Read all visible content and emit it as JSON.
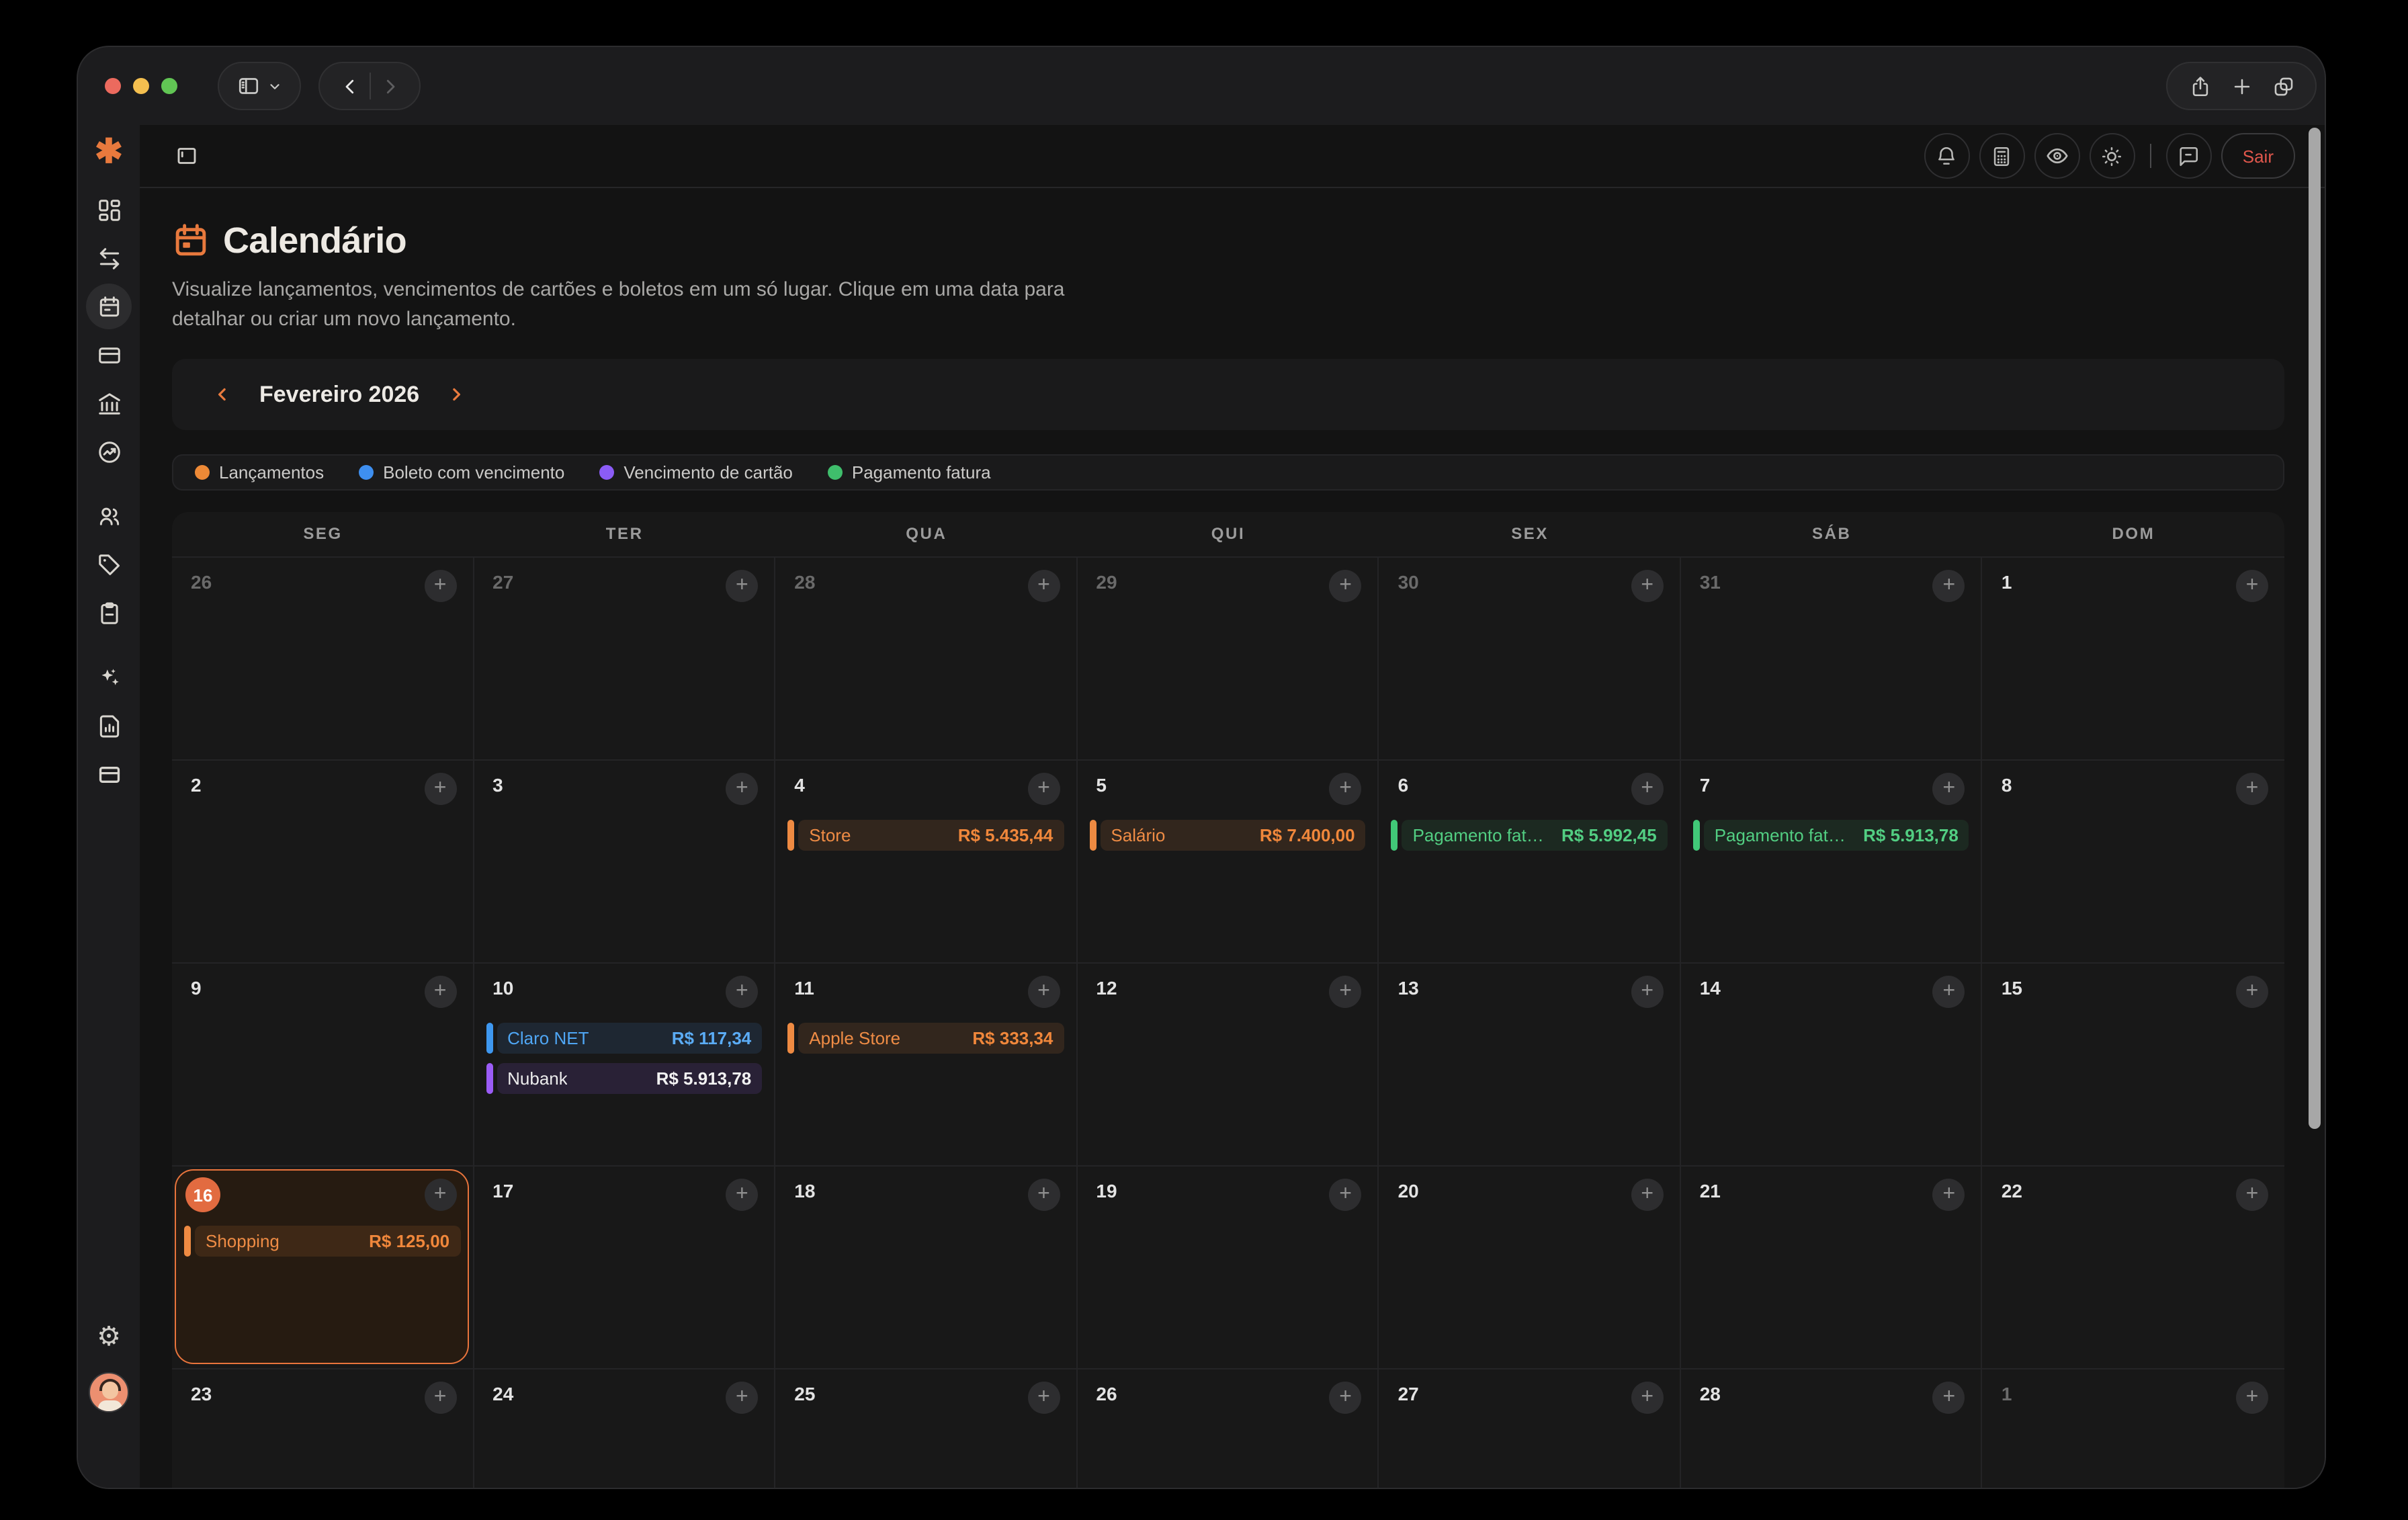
{
  "colors": {
    "accent_orange": "#E8793D",
    "logout_red": "#E0574C",
    "traffic_close": "#EC6A5E",
    "traffic_min": "#F4BF4F",
    "traffic_zoom": "#61C554",
    "today_border": "#E8743C"
  },
  "app": {
    "topbar": {
      "logout_label": "Sair"
    },
    "page": {
      "title": "Calendário",
      "description": "Visualize lançamentos, vencimentos de cartões e boletos em um só lugar. Clique em uma data para detalhar ou criar um novo lançamento."
    },
    "month_nav": {
      "label": "Fevereiro 2026"
    },
    "legend": [
      {
        "label": "Lançamentos",
        "color": "#ED8936"
      },
      {
        "label": "Boleto com vencimento",
        "color": "#3E8FF0"
      },
      {
        "label": "Vencimento de cartão",
        "color": "#8B5CF6"
      },
      {
        "label": "Pagamento fatura",
        "color": "#3FBE6C"
      }
    ],
    "event_types": {
      "lancamento": {
        "bar": "#EE8A42",
        "text": "#EF8C45",
        "amount": "#F0873B",
        "bg": "rgba(238,138,66,0.12)"
      },
      "boleto": {
        "bar": "#3E97EF",
        "text": "#4FA6F4",
        "amount": "#5BACF5",
        "bg": "rgba(74,150,240,0.12)"
      },
      "cartao": {
        "bar": "#9B5CF6",
        "text": "#ECECEC",
        "amount": "#F2F2F2",
        "bg": "rgba(150,95,240,0.14)"
      },
      "pagamento": {
        "bar": "#41C878",
        "text": "#52CE82",
        "amount": "#52CE82",
        "bg": "rgba(70,200,120,0.10)"
      }
    },
    "calendar": {
      "weekdays": [
        "SEG",
        "TER",
        "QUA",
        "QUI",
        "SEX",
        "SÁB",
        "DOM"
      ],
      "cells": [
        {
          "day": "26",
          "muted": true
        },
        {
          "day": "27",
          "muted": true
        },
        {
          "day": "28",
          "muted": true
        },
        {
          "day": "29",
          "muted": true
        },
        {
          "day": "30",
          "muted": true
        },
        {
          "day": "31",
          "muted": true
        },
        {
          "day": "1"
        },
        {
          "day": "2"
        },
        {
          "day": "3"
        },
        {
          "day": "4",
          "events": [
            {
              "name": "Store",
              "amount": "R$ 5.435,44",
              "type": "lancamento"
            }
          ]
        },
        {
          "day": "5",
          "events": [
            {
              "name": "Salário",
              "amount": "R$ 7.400,00",
              "type": "lancamento"
            }
          ]
        },
        {
          "day": "6",
          "events": [
            {
              "name": "Pagamento fatura...",
              "amount": "R$ 5.992,45",
              "type": "pagamento"
            }
          ]
        },
        {
          "day": "7",
          "events": [
            {
              "name": "Pagamento fatura ...",
              "amount": "R$ 5.913,78",
              "type": "pagamento"
            }
          ]
        },
        {
          "day": "8"
        },
        {
          "day": "9"
        },
        {
          "day": "10",
          "events": [
            {
              "name": "Claro NET",
              "amount": "R$ 117,34",
              "type": "boleto"
            },
            {
              "name": "Nubank",
              "amount": "R$ 5.913,78",
              "type": "cartao"
            }
          ]
        },
        {
          "day": "11",
          "events": [
            {
              "name": "Apple Store",
              "amount": "R$ 333,34",
              "type": "lancamento"
            }
          ]
        },
        {
          "day": "12"
        },
        {
          "day": "13"
        },
        {
          "day": "14"
        },
        {
          "day": "15"
        },
        {
          "day": "16",
          "today": true,
          "events": [
            {
              "name": "Shopping",
              "amount": "R$ 125,00",
              "type": "lancamento"
            }
          ]
        },
        {
          "day": "17"
        },
        {
          "day": "18"
        },
        {
          "day": "19"
        },
        {
          "day": "20"
        },
        {
          "day": "21"
        },
        {
          "day": "22"
        },
        {
          "day": "23"
        },
        {
          "day": "24"
        },
        {
          "day": "25"
        },
        {
          "day": "26"
        },
        {
          "day": "27"
        },
        {
          "day": "28"
        },
        {
          "day": "1",
          "muted": true
        }
      ]
    }
  }
}
